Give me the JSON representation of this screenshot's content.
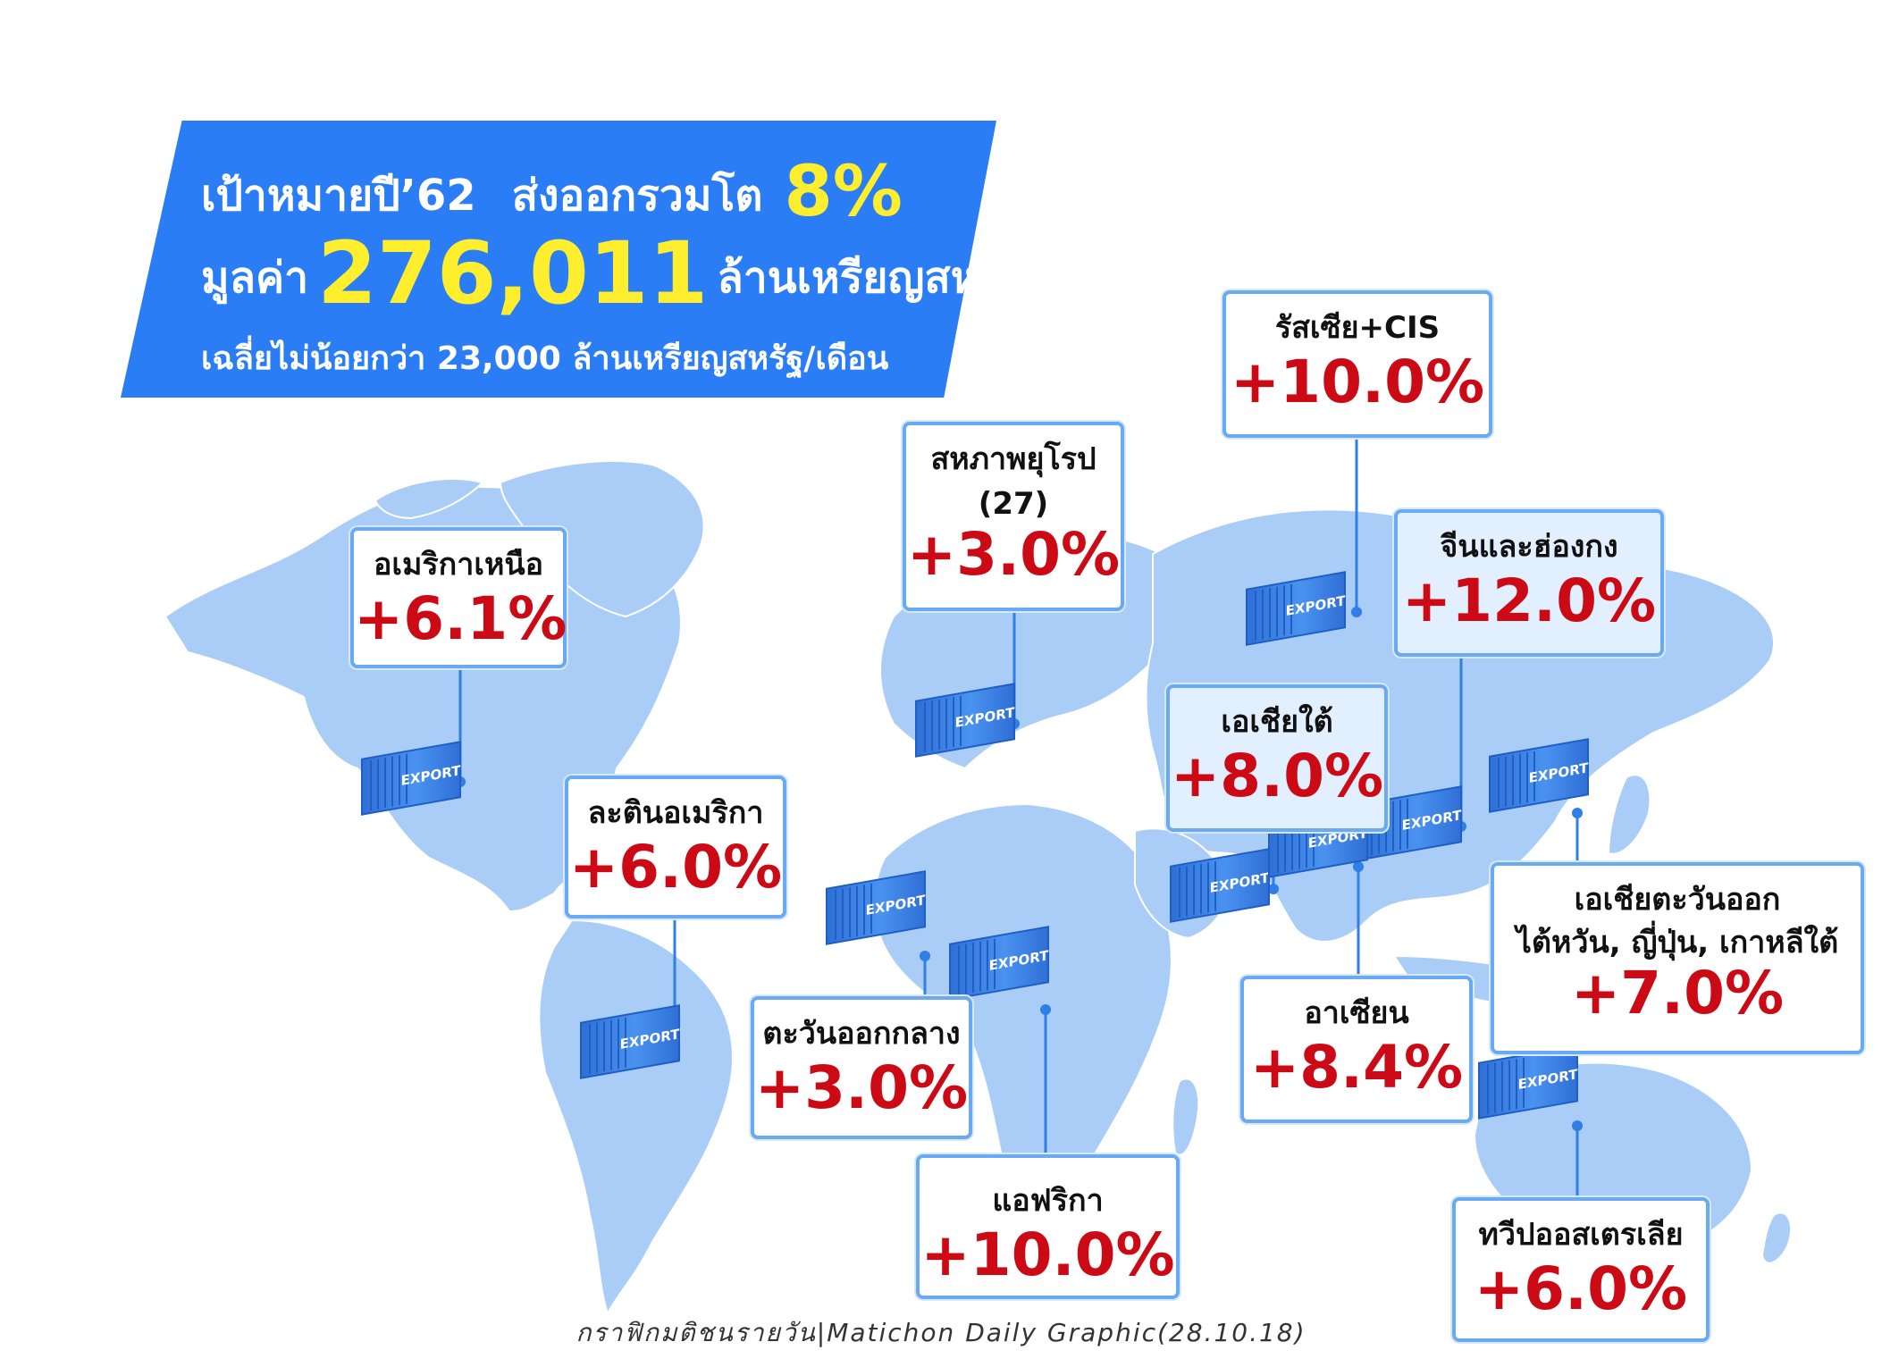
{
  "header": {
    "line1_prefix": "เป้าหมายปี’62",
    "line1_mid": "ส่งออกรวมโต",
    "line1_highlight": "8%",
    "line2_prefix": "มูลค่า",
    "line2_value": "276,011",
    "line2_suffix": "ล้านเหรียญสหรัฐ",
    "line3": "เฉลี่ยไม่น้อยกว่า 23,000 ล้านเหรียญสหรัฐ/เดือน"
  },
  "container_label": "EXPORT",
  "regions": [
    {
      "key": "north_america",
      "name": "อเมริกาเหนือ",
      "value": "+6.1%"
    },
    {
      "key": "latin_america",
      "name": "ละตินอเมริกา",
      "value": "+6.0%"
    },
    {
      "key": "eu",
      "name": "สหภาพยุโรป",
      "name2": "(27)",
      "value": "+3.0%"
    },
    {
      "key": "middle_east",
      "name": "ตะวันออกกลาง",
      "value": "+3.0%"
    },
    {
      "key": "africa",
      "name": "แอฟริกา",
      "value": "+10.0%"
    },
    {
      "key": "russia_cis",
      "name": "รัสเซีย+CIS",
      "value": "+10.0%"
    },
    {
      "key": "china_hk",
      "name": "จีนและฮ่องกง",
      "value": "+12.0%"
    },
    {
      "key": "south_asia",
      "name": "เอเชียใต้",
      "value": "+8.0%"
    },
    {
      "key": "asean",
      "name": "อาเซียน",
      "value": "+8.4%"
    },
    {
      "key": "east_asia",
      "name": "เอเชียตะวันออก",
      "name2": "ไต้หวัน, ญี่ปุ่น, เกาหลีใต้",
      "value": "+7.0%"
    },
    {
      "key": "oceania",
      "name": "ทวีปออสเตรเลีย",
      "value": "+6.0%"
    }
  ],
  "caption": "กราฟิกมติชนรายวัน|Matichon Daily Graphic(28.10.18)",
  "colors": {
    "banner": "#2a7df4",
    "highlight": "#ffee2e",
    "value_red": "#cc0a16",
    "land": "#a9cdf6",
    "container": "#3b82e8",
    "box_border": "#6aaaf2"
  }
}
